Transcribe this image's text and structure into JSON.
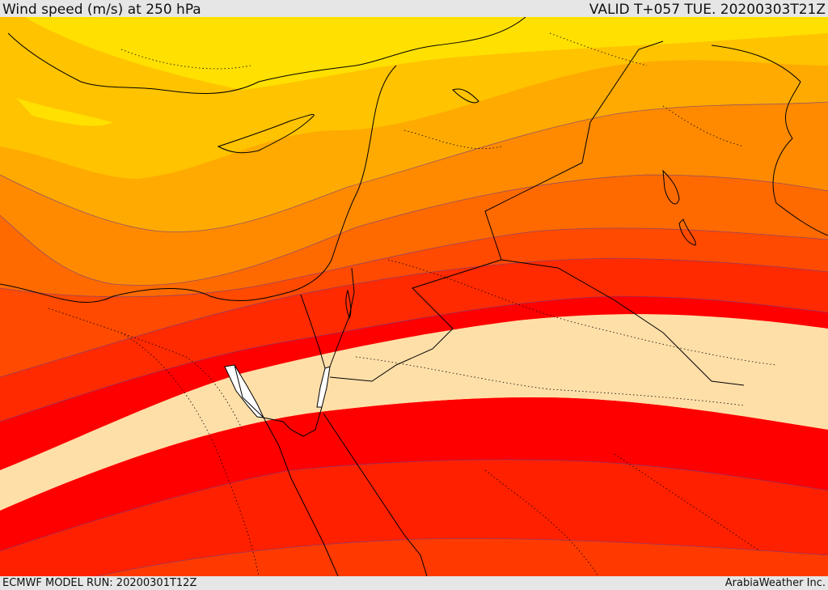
{
  "header": {
    "title": "Wind speed (m/s) at 250 hPa",
    "valid": "VALID T+057 TUE. 20200303T21Z"
  },
  "footer": {
    "run": "ECMWF MODEL RUN: 20200301T12Z",
    "credit": "ArabiaWeather Inc."
  },
  "colors": {
    "speed_bands_slow_to_fast": [
      "#ffe000",
      "#ffc300",
      "#ffaa00",
      "#ff8a00",
      "#ff6a00",
      "#ff4a00",
      "#ff0000",
      "#ffdfa8"
    ],
    "jet_edge_bands": [
      "#ff2000",
      "#ff3a00"
    ],
    "sea_gap": "#ffffff",
    "coastline": "#000000"
  }
}
